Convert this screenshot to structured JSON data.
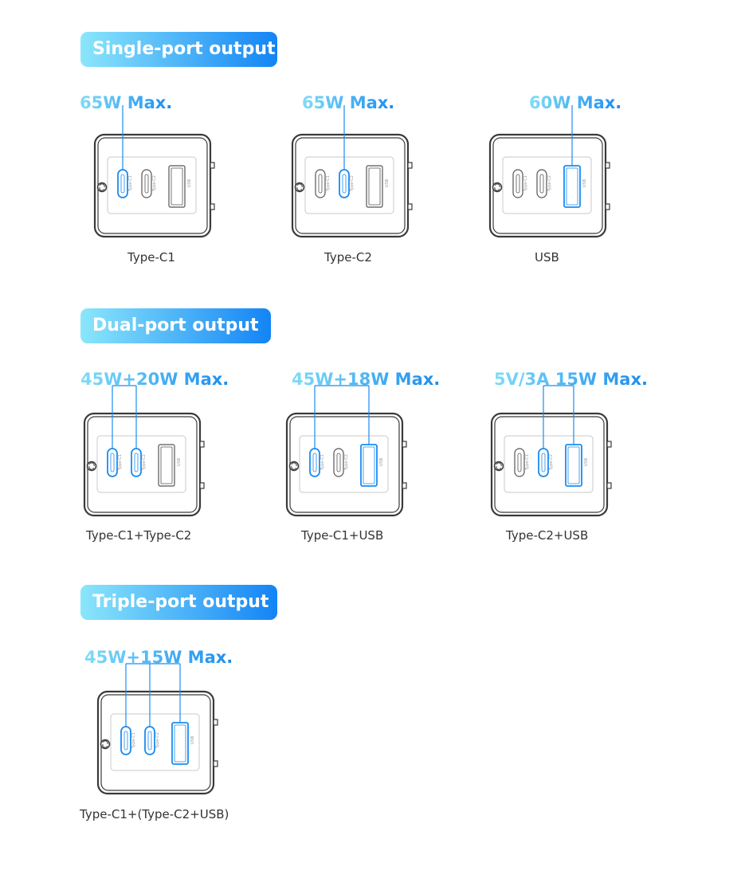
{
  "colors": {
    "accent": "#1a8cf0",
    "accent_light": "#80dcf8",
    "outline": "#3a3a3a",
    "panel": "#c8c8c8"
  },
  "port_labels": [
    "Type-C1",
    "Type-C2",
    "USB"
  ],
  "sections": [
    {
      "heading": "Single-port output",
      "items": [
        {
          "wattage": "65W Max.",
          "caption": "Type-C1",
          "active_ports": [
            0
          ]
        },
        {
          "wattage": "65W Max.",
          "caption": "Type-C2",
          "active_ports": [
            1
          ]
        },
        {
          "wattage": "60W Max.",
          "caption": "USB",
          "active_ports": [
            2
          ]
        }
      ]
    },
    {
      "heading": "Dual-port output",
      "items": [
        {
          "wattage": "45W+20W Max.",
          "caption": "Type-C1+Type-C2",
          "active_ports": [
            0,
            1
          ]
        },
        {
          "wattage": "45W+18W Max.",
          "caption": "Type-C1+USB",
          "active_ports": [
            0,
            2
          ]
        },
        {
          "wattage": "5V/3A 15W Max.",
          "caption": "Type-C2+USB",
          "active_ports": [
            1,
            2
          ]
        }
      ]
    },
    {
      "heading": "Triple-port output",
      "items": [
        {
          "wattage": "45W+15W Max.",
          "caption": "Type-C1+(Type-C2+USB)",
          "active_ports": [
            0,
            1,
            2
          ]
        }
      ]
    }
  ]
}
